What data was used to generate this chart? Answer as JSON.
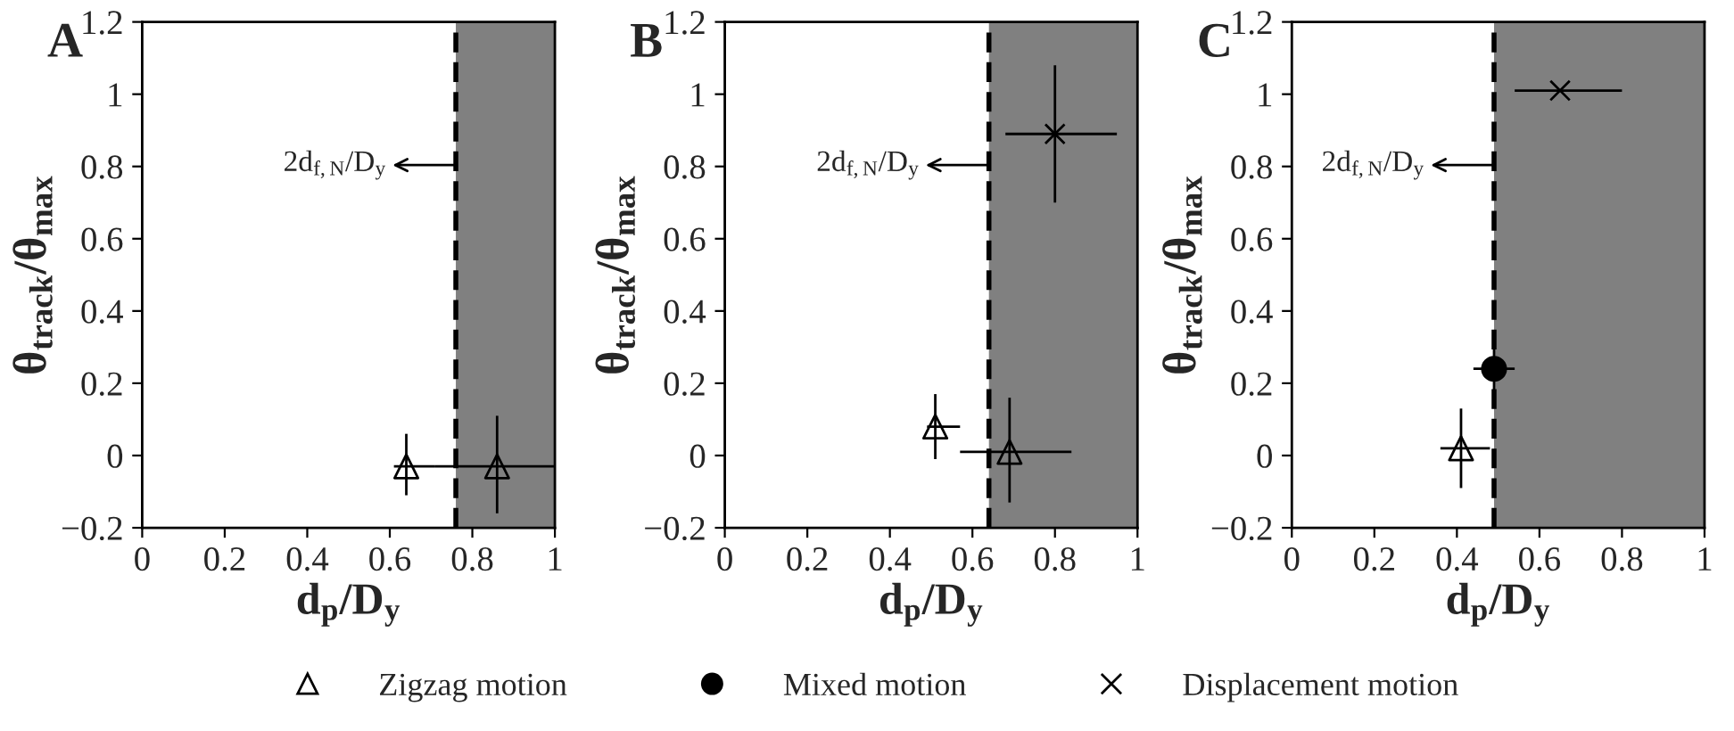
{
  "chart_data": [
    {
      "type": "scatter",
      "xlabel": "d$_{p}$/D$_{y}$",
      "ylabel": "θ$_{track}$/θ$_{max}$",
      "annotations": [
        "A"
      ],
      "xlim": [
        0,
        1
      ],
      "xticks": [
        0,
        0.2,
        0.4,
        0.6,
        0.8,
        1
      ],
      "ylim": [
        -0.2,
        1.2
      ],
      "yticks": [
        -0.2,
        0,
        0.2,
        0.4,
        0.6,
        0.8,
        1,
        1.2
      ],
      "grid": false,
      "legend": "bottom",
      "ref_lines": [
        {
          "axis": "x",
          "value": 0.76,
          "label": "2d$_{f,N}$/D$_{y}$",
          "line_style": "dashed",
          "color": "#000000"
        }
      ],
      "bands": [
        {
          "axis": "x",
          "from": 0.76,
          "to": 1,
          "color": "#808080"
        }
      ],
      "series": [
        {
          "name": "Zigzag motion",
          "color": "#000000",
          "marker": "triangle",
          "x": [
            0.64,
            0.86
          ],
          "values": [
            -0.03,
            -0.03
          ],
          "errors": [
            [
              -0.11,
              0.06
            ],
            [
              -0.16,
              0.11
            ]
          ],
          "xerrors": [
            [
              0.61,
              0.71
            ],
            [
              0.71,
              1.0
            ]
          ]
        }
      ]
    },
    {
      "type": "scatter",
      "xlabel": "d$_{p}$/D$_{y}$",
      "ylabel": "θ$_{track}$/θ$_{max}$",
      "annotations": [
        "B"
      ],
      "xlim": [
        0,
        1
      ],
      "xticks": [
        0,
        0.2,
        0.4,
        0.6,
        0.8,
        1
      ],
      "ylim": [
        -0.2,
        1.2
      ],
      "yticks": [
        -0.2,
        0,
        0.2,
        0.4,
        0.6,
        0.8,
        1,
        1.2
      ],
      "grid": false,
      "legend": "bottom",
      "ref_lines": [
        {
          "axis": "x",
          "value": 0.64,
          "label": "2d$_{f,N}$/D$_{y}$",
          "line_style": "dashed",
          "color": "#000000"
        }
      ],
      "bands": [
        {
          "axis": "x",
          "from": 0.64,
          "to": 1,
          "color": "#808080"
        }
      ],
      "series": [
        {
          "name": "Zigzag motion",
          "color": "#000000",
          "marker": "triangle",
          "x": [
            0.51,
            0.69
          ],
          "values": [
            0.08,
            0.01
          ],
          "errors": [
            [
              -0.01,
              0.17
            ],
            [
              -0.13,
              0.16
            ]
          ],
          "xerrors": [
            [
              0.49,
              0.57
            ],
            [
              0.57,
              0.84
            ]
          ]
        },
        {
          "name": "Displacement motion",
          "color": "#000000",
          "marker": "cross",
          "x": [
            0.8
          ],
          "values": [
            0.89
          ],
          "errors": [
            [
              0.7,
              1.08
            ]
          ],
          "xerrors": [
            [
              0.68,
              0.95
            ]
          ]
        }
      ]
    },
    {
      "type": "scatter",
      "xlabel": "d$_{p}$/D$_{y}$",
      "ylabel": "θ$_{track}$/θ$_{max}$",
      "annotations": [
        "C"
      ],
      "xlim": [
        0,
        1
      ],
      "xticks": [
        0,
        0.2,
        0.4,
        0.6,
        0.8,
        1
      ],
      "ylim": [
        -0.2,
        1.2
      ],
      "yticks": [
        -0.2,
        0,
        0.2,
        0.4,
        0.6,
        0.8,
        1,
        1.2
      ],
      "grid": false,
      "legend": "bottom",
      "ref_lines": [
        {
          "axis": "x",
          "value": 0.49,
          "label": "2d$_{f,N}$/D$_{y}$",
          "line_style": "dashed",
          "color": "#000000"
        }
      ],
      "bands": [
        {
          "axis": "x",
          "from": 0.49,
          "to": 1,
          "color": "#808080"
        }
      ],
      "series": [
        {
          "name": "Zigzag motion",
          "color": "#000000",
          "marker": "triangle",
          "x": [
            0.41
          ],
          "values": [
            0.02
          ],
          "errors": [
            [
              -0.09,
              0.13
            ]
          ],
          "xerrors": [
            [
              0.36,
              0.48
            ]
          ]
        },
        {
          "name": "Mixed motion",
          "color": "#000000",
          "marker": "circle",
          "x": [
            0.49
          ],
          "values": [
            0.24
          ],
          "errors": [
            [
              0.18,
              0.31
            ]
          ],
          "xerrors": [
            [
              0.44,
              0.54
            ]
          ]
        },
        {
          "name": "Displacement motion",
          "color": "#000000",
          "marker": "cross",
          "x": [
            0.65
          ],
          "values": [
            1.01
          ],
          "errors": [
            null
          ],
          "xerrors": [
            [
              0.54,
              0.8
            ]
          ]
        }
      ]
    }
  ]
}
